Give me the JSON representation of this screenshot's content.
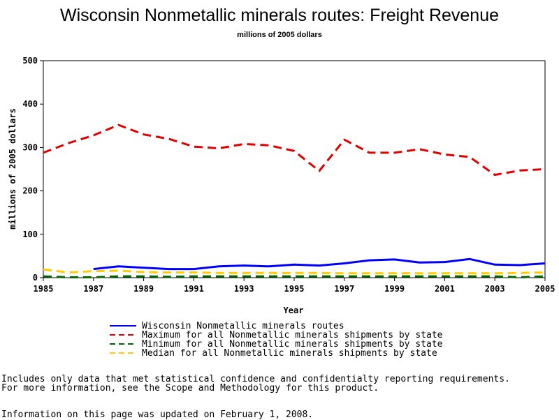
{
  "chart_data": {
    "type": "line",
    "title": "Wisconsin Nonmetallic minerals routes: Freight Revenue",
    "subtitle": "millions of 2005 dollars",
    "xlabel": "Year",
    "ylabel": "millions of 2005 dollars",
    "xlim": [
      1985,
      2005
    ],
    "ylim": [
      0,
      500
    ],
    "x_ticks": [
      "1985",
      "1987",
      "1989",
      "1991",
      "1993",
      "1995",
      "1997",
      "1999",
      "2001",
      "2003",
      "2005"
    ],
    "y_ticks": [
      "0",
      "100",
      "200",
      "300",
      "400",
      "500"
    ],
    "grid": false,
    "legend_position": "bottom",
    "series": [
      {
        "name": "Wisconsin Nonmetallic minerals routes",
        "color": "#0000ff",
        "style": "solid",
        "x": [
          1987,
          1988,
          1989,
          1990,
          1991,
          1992,
          1993,
          1994,
          1995,
          1996,
          1997,
          1998,
          1999,
          2000,
          2001,
          2002,
          2003,
          2004,
          2005
        ],
        "values": [
          20,
          26,
          23,
          20,
          20,
          26,
          28,
          26,
          30,
          28,
          33,
          40,
          42,
          35,
          36,
          43,
          30,
          29,
          33
        ]
      },
      {
        "name": "Maximum for all Nonmetallic minerals shipments by state",
        "color": "#e00000",
        "style": "dashed",
        "x": [
          1985,
          1986,
          1987,
          1988,
          1989,
          1990,
          1991,
          1992,
          1993,
          1994,
          1995,
          1996,
          1997,
          1998,
          1999,
          2000,
          2001,
          2002,
          2003,
          2004,
          2005
        ],
        "values": [
          288,
          310,
          328,
          352,
          330,
          320,
          302,
          298,
          308,
          305,
          292,
          246,
          318,
          288,
          288,
          296,
          284,
          278,
          237,
          247,
          250
        ]
      },
      {
        "name": "Minimum for all Nonmetallic minerals shipments by state",
        "color": "#006400",
        "style": "dashed",
        "x": [
          1985,
          1986,
          1987,
          1988,
          1989,
          1990,
          1991,
          1992,
          1993,
          1994,
          1995,
          1996,
          1997,
          1998,
          1999,
          2000,
          2001,
          2002,
          2003,
          2004,
          2005
        ],
        "values": [
          3,
          1,
          1,
          3,
          3,
          2,
          3,
          3,
          3,
          3,
          3,
          3,
          3,
          3,
          3,
          3,
          3,
          3,
          3,
          1,
          3
        ]
      },
      {
        "name": "Median for all Nonmetallic minerals shipments by state",
        "color": "#ffcc00",
        "style": "dashed",
        "x": [
          1985,
          1986,
          1987,
          1988,
          1989,
          1990,
          1991,
          1992,
          1993,
          1994,
          1995,
          1996,
          1997,
          1998,
          1999,
          2000,
          2001,
          2002,
          2003,
          2004,
          2005
        ],
        "values": [
          19,
          12,
          15,
          16,
          13,
          12,
          12,
          11,
          11,
          11,
          11,
          11,
          10,
          10,
          10,
          10,
          10,
          10,
          10,
          11,
          12
        ]
      }
    ]
  },
  "footnotes": [
    "Includes only data that met statistical confidence and confidentialty reporting requirements.",
    "For more information, see the Scope and Methodology for this product.",
    "Information on this page was updated on February 1, 2008."
  ]
}
